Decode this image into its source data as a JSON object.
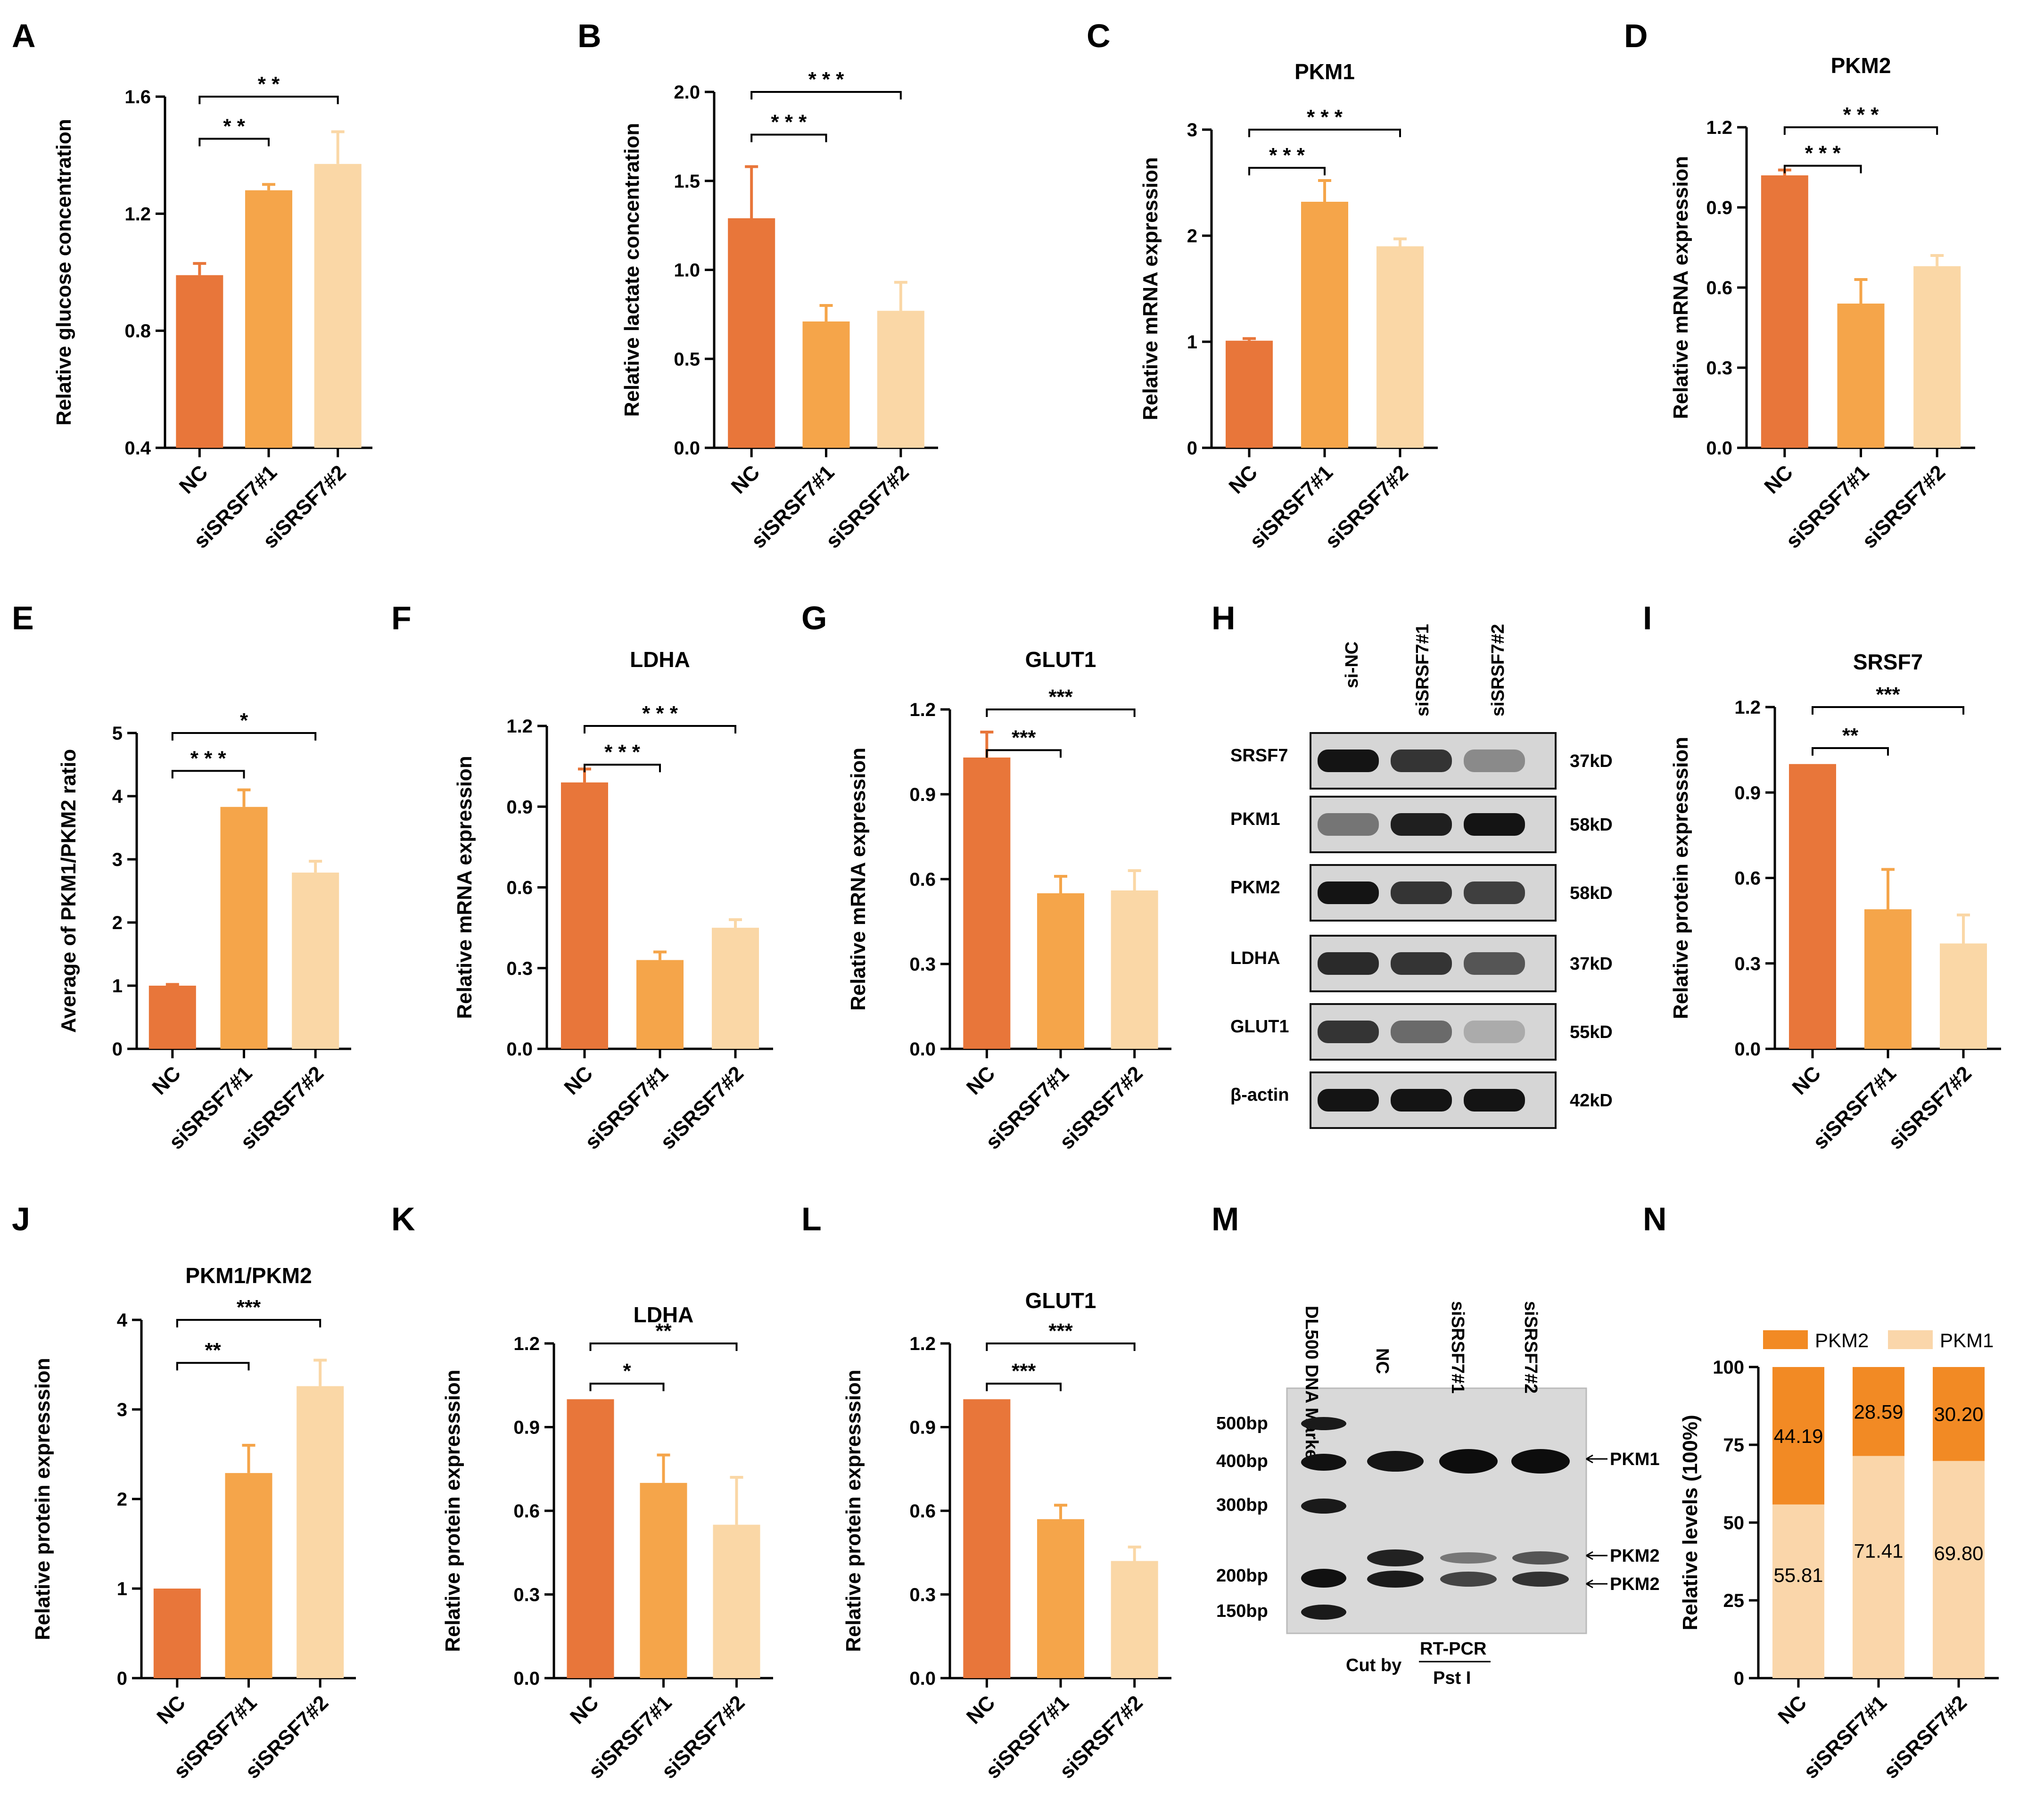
{
  "colors": {
    "nc": "#E8763A",
    "si1": "#F5A54A",
    "si2": "#FAD7A6",
    "pkm2": "#F28A24",
    "pkm1": "#FAD6AA",
    "axis": "#000000"
  },
  "chart_data": [
    {
      "id": "A",
      "panel": "A",
      "type": "bar",
      "title": "",
      "categories": [
        "NC",
        "siSRSF7#1",
        "siSRSF7#2"
      ],
      "values": [
        0.99,
        1.28,
        1.37
      ],
      "errors": [
        0.04,
        0.02,
        0.11
      ],
      "ylabel": "Relative glucose concentration",
      "ylim": [
        0.4,
        1.6
      ],
      "yticks": [
        "0.4",
        "0.8",
        "1.2",
        "1.6"
      ],
      "sig": [
        {
          "from": 0,
          "to": 1,
          "label": "* *"
        },
        {
          "from": 0,
          "to": 2,
          "label": "* *"
        }
      ]
    },
    {
      "id": "B",
      "panel": "B",
      "type": "bar",
      "title": "",
      "categories": [
        "NC",
        "siSRSF7#1",
        "siSRSF7#2"
      ],
      "values": [
        1.29,
        0.71,
        0.77
      ],
      "errors": [
        0.29,
        0.09,
        0.16
      ],
      "ylabel": "Relative lactate concentration",
      "ylim": [
        0,
        2.0
      ],
      "yticks": [
        "0.0",
        "0.5",
        "1.0",
        "1.5",
        "2.0"
      ],
      "sig": [
        {
          "from": 0,
          "to": 1,
          "label": "* * *"
        },
        {
          "from": 0,
          "to": 2,
          "label": "* * *"
        }
      ]
    },
    {
      "id": "C",
      "panel": "C",
      "type": "bar",
      "title": "PKM1",
      "categories": [
        "NC",
        "siSRSF7#1",
        "siSRSF7#2"
      ],
      "values": [
        1.01,
        2.32,
        1.9
      ],
      "errors": [
        0.02,
        0.2,
        0.07
      ],
      "ylabel": "Relative mRNA expression",
      "ylim": [
        0,
        3
      ],
      "yticks": [
        "0",
        "1",
        "2",
        "3"
      ],
      "sig": [
        {
          "from": 0,
          "to": 1,
          "label": "* * *"
        },
        {
          "from": 0,
          "to": 2,
          "label": "* * *"
        }
      ]
    },
    {
      "id": "D",
      "panel": "D",
      "type": "bar",
      "title": "PKM2",
      "categories": [
        "NC",
        "siSRSF7#1",
        "siSRSF7#2"
      ],
      "values": [
        1.02,
        0.54,
        0.68
      ],
      "errors": [
        0.02,
        0.09,
        0.04
      ],
      "ylabel": "Relative mRNA expression",
      "ylim": [
        0,
        1.2
      ],
      "yticks": [
        "0.0",
        "0.3",
        "0.6",
        "0.9",
        "1.2"
      ],
      "sig": [
        {
          "from": 0,
          "to": 1,
          "label": "* * *"
        },
        {
          "from": 0,
          "to": 2,
          "label": "* * *"
        }
      ]
    },
    {
      "id": "E",
      "panel": "E",
      "type": "bar",
      "title": "",
      "categories": [
        "NC",
        "siSRSF7#1",
        "siSRSF7#2"
      ],
      "values": [
        1.0,
        3.83,
        2.79
      ],
      "errors": [
        0.02,
        0.27,
        0.18
      ],
      "ylabel": "Average of PKM1/PKM2 ratio",
      "ylim": [
        0,
        5
      ],
      "yticks": [
        "0",
        "1",
        "2",
        "3",
        "4",
        "5"
      ],
      "sig": [
        {
          "from": 0,
          "to": 1,
          "label": "* * *"
        },
        {
          "from": 0,
          "to": 2,
          "label": "*"
        }
      ]
    },
    {
      "id": "F",
      "panel": "F",
      "type": "bar",
      "title": "LDHA",
      "categories": [
        "NC",
        "siSRSF7#1",
        "siSRSF7#2"
      ],
      "values": [
        0.99,
        0.33,
        0.45
      ],
      "errors": [
        0.05,
        0.03,
        0.03
      ],
      "ylabel": "Relative mRNA expression",
      "ylim": [
        0,
        1.2
      ],
      "yticks": [
        "0.0",
        "0.3",
        "0.6",
        "0.9",
        "1.2"
      ],
      "sig": [
        {
          "from": 0,
          "to": 1,
          "label": "* * *"
        },
        {
          "from": 0,
          "to": 2,
          "label": "* * *"
        }
      ]
    },
    {
      "id": "G",
      "panel": "G",
      "type": "bar",
      "title": "GLUT1",
      "categories": [
        "NC",
        "siSRSF7#1",
        "siSRSF7#2"
      ],
      "values": [
        1.03,
        0.55,
        0.56
      ],
      "errors": [
        0.09,
        0.06,
        0.07
      ],
      "ylabel": "Relative mRNA expression",
      "ylim": [
        0,
        1.2
      ],
      "yticks": [
        "0.0",
        "0.3",
        "0.6",
        "0.9",
        "1.2"
      ],
      "sig": [
        {
          "from": 0,
          "to": 1,
          "label": "***"
        },
        {
          "from": 0,
          "to": 2,
          "label": "***"
        }
      ]
    },
    {
      "id": "I",
      "panel": "I",
      "type": "bar",
      "title": "SRSF7",
      "categories": [
        "NC",
        "siSRSF7#1",
        "siSRSF7#2"
      ],
      "values": [
        1.0,
        0.49,
        0.37
      ],
      "errors": [
        0.0,
        0.14,
        0.1
      ],
      "ylabel": "Relative  protein expresssion",
      "ylim": [
        0,
        1.2
      ],
      "yticks": [
        "0.0",
        "0.3",
        "0.6",
        "0.9",
        "1.2"
      ],
      "sig": [
        {
          "from": 0,
          "to": 1,
          "label": "**"
        },
        {
          "from": 0,
          "to": 2,
          "label": "***"
        }
      ]
    },
    {
      "id": "J",
      "panel": "J",
      "type": "bar",
      "title": "PKM1/PKM2",
      "categories": [
        "NC",
        "siSRSF7#1",
        "siSRSF7#2"
      ],
      "values": [
        1.0,
        2.29,
        3.26
      ],
      "errors": [
        0.0,
        0.31,
        0.29
      ],
      "ylabel": "Relative  protein expresssion",
      "ylim": [
        0,
        4
      ],
      "yticks": [
        "0",
        "1",
        "2",
        "3",
        "4"
      ],
      "sig": [
        {
          "from": 0,
          "to": 1,
          "label": "**"
        },
        {
          "from": 0,
          "to": 2,
          "label": "***"
        }
      ]
    },
    {
      "id": "K",
      "panel": "K",
      "type": "bar",
      "title": "LDHA",
      "categories": [
        "NC",
        "siSRSF7#1",
        "siSRSF7#2"
      ],
      "values": [
        1.0,
        0.7,
        0.55
      ],
      "errors": [
        0.0,
        0.1,
        0.17
      ],
      "ylabel": "Relative  protein expresssion",
      "ylim": [
        0,
        1.2
      ],
      "yticks": [
        "0.0",
        "0.3",
        "0.6",
        "0.9",
        "1.2"
      ],
      "sig": [
        {
          "from": 0,
          "to": 1,
          "label": "*"
        },
        {
          "from": 0,
          "to": 2,
          "label": "**"
        }
      ]
    },
    {
      "id": "L",
      "panel": "L",
      "type": "bar",
      "title": "GLUT1",
      "categories": [
        "NC",
        "siSRSF7#1",
        "siSRSF7#2"
      ],
      "values": [
        1.0,
        0.57,
        0.42
      ],
      "errors": [
        0.0,
        0.05,
        0.05
      ],
      "ylabel": "Relative  protein expresssion",
      "ylim": [
        0,
        1.2
      ],
      "yticks": [
        "0.0",
        "0.3",
        "0.6",
        "0.9",
        "1.2"
      ],
      "sig": [
        {
          "from": 0,
          "to": 1,
          "label": "***"
        },
        {
          "from": 0,
          "to": 2,
          "label": "***"
        }
      ]
    },
    {
      "id": "N",
      "panel": "N",
      "type": "stacked-bar",
      "title": "",
      "categories": [
        "NC",
        "siSRSF7#1",
        "siSRSF7#2"
      ],
      "series": [
        {
          "name": "PKM1",
          "values": [
            55.81,
            71.41,
            69.8
          ],
          "labels": [
            "55.81",
            "71.41",
            "69.80"
          ]
        },
        {
          "name": "PKM2",
          "values": [
            44.19,
            28.59,
            30.2
          ],
          "labels": [
            "44.19",
            "28.59",
            "30.20"
          ]
        }
      ],
      "legend": [
        "PKM2",
        "PKM1"
      ],
      "ylabel": "Relative levels (100%)",
      "ylim": [
        0,
        100
      ],
      "yticks": [
        "0",
        "25",
        "50",
        "75",
        "100"
      ]
    }
  ],
  "western_blot": {
    "panel": "H",
    "lanes": [
      "si-NC",
      "siSRSF7#1",
      "siSRSF7#2"
    ],
    "rows": [
      {
        "protein": "SRSF7",
        "size": "37kD",
        "intensity": [
          1.0,
          0.85,
          0.45
        ]
      },
      {
        "protein": "PKM1",
        "size": "58kD",
        "intensity": [
          0.55,
          0.95,
          1.0
        ]
      },
      {
        "protein": "PKM2",
        "size": "58kD",
        "intensity": [
          1.0,
          0.85,
          0.8
        ]
      },
      {
        "protein": "LDHA",
        "size": "37kD",
        "intensity": [
          0.9,
          0.85,
          0.7
        ]
      },
      {
        "protein": "GLUT1",
        "size": "55kD",
        "intensity": [
          0.85,
          0.6,
          0.3
        ]
      },
      {
        "protein": "β-actin",
        "size": "42kD",
        "intensity": [
          1.0,
          1.0,
          1.0
        ]
      }
    ]
  },
  "gel": {
    "panel": "M",
    "lanes": [
      "DL500 DNA Marker",
      "NC",
      "siSRSF7#1",
      "siSRSF7#2"
    ],
    "markers": [
      "500bp",
      "400bp",
      "300bp",
      "200bp",
      "150bp"
    ],
    "bands": [
      "PKM1",
      "PKM2",
      "PKM2"
    ],
    "footer": {
      "cut_by": "Cut by",
      "top": "RT-PCR",
      "bottom": "Pst I"
    }
  }
}
